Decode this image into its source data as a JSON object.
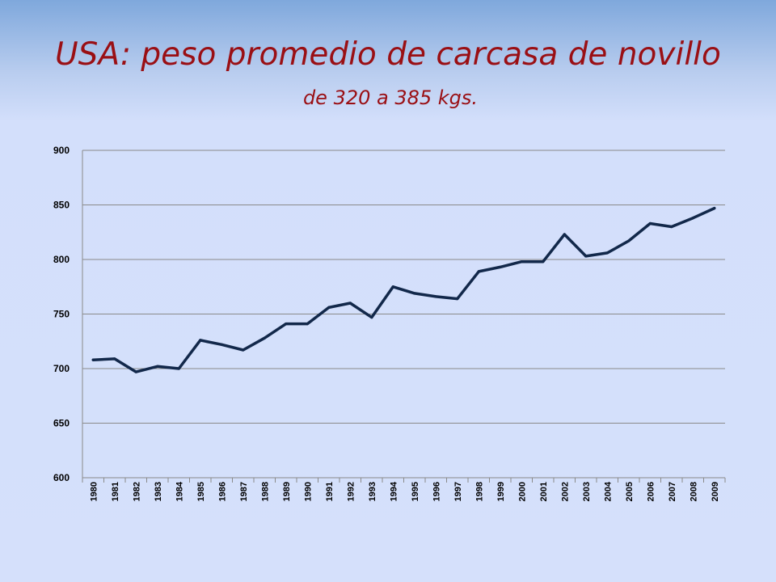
{
  "slide": {
    "title": "USA: peso promedio de carcasa de novillo",
    "subtitle": "de 320 a 385 kgs."
  },
  "chart_data": {
    "type": "line",
    "title": "",
    "xlabel": "",
    "ylabel": "",
    "categories": [
      "1980",
      "1981",
      "1982",
      "1983",
      "1984",
      "1985",
      "1986",
      "1987",
      "1988",
      "1989",
      "1990",
      "1991",
      "1992",
      "1993",
      "1994",
      "1995",
      "1996",
      "1997",
      "1998",
      "1999",
      "2000",
      "2001",
      "2002",
      "2003",
      "2004",
      "2005",
      "2006",
      "2007",
      "2008",
      "2009"
    ],
    "series": [
      {
        "values": [
          708,
          709,
          697,
          702,
          700,
          726,
          722,
          717,
          728,
          741,
          741,
          756,
          760,
          747,
          775,
          769,
          766,
          764,
          789,
          793,
          798,
          798,
          823,
          803,
          806,
          817,
          833,
          830,
          838,
          847
        ]
      }
    ],
    "ylim": [
      600,
      900
    ],
    "yticks": [
      600,
      650,
      700,
      750,
      800,
      850,
      900
    ],
    "grid": "horizontal",
    "legend": "none",
    "line_color": "#12284a",
    "grid_color": "#8a8a8a"
  }
}
